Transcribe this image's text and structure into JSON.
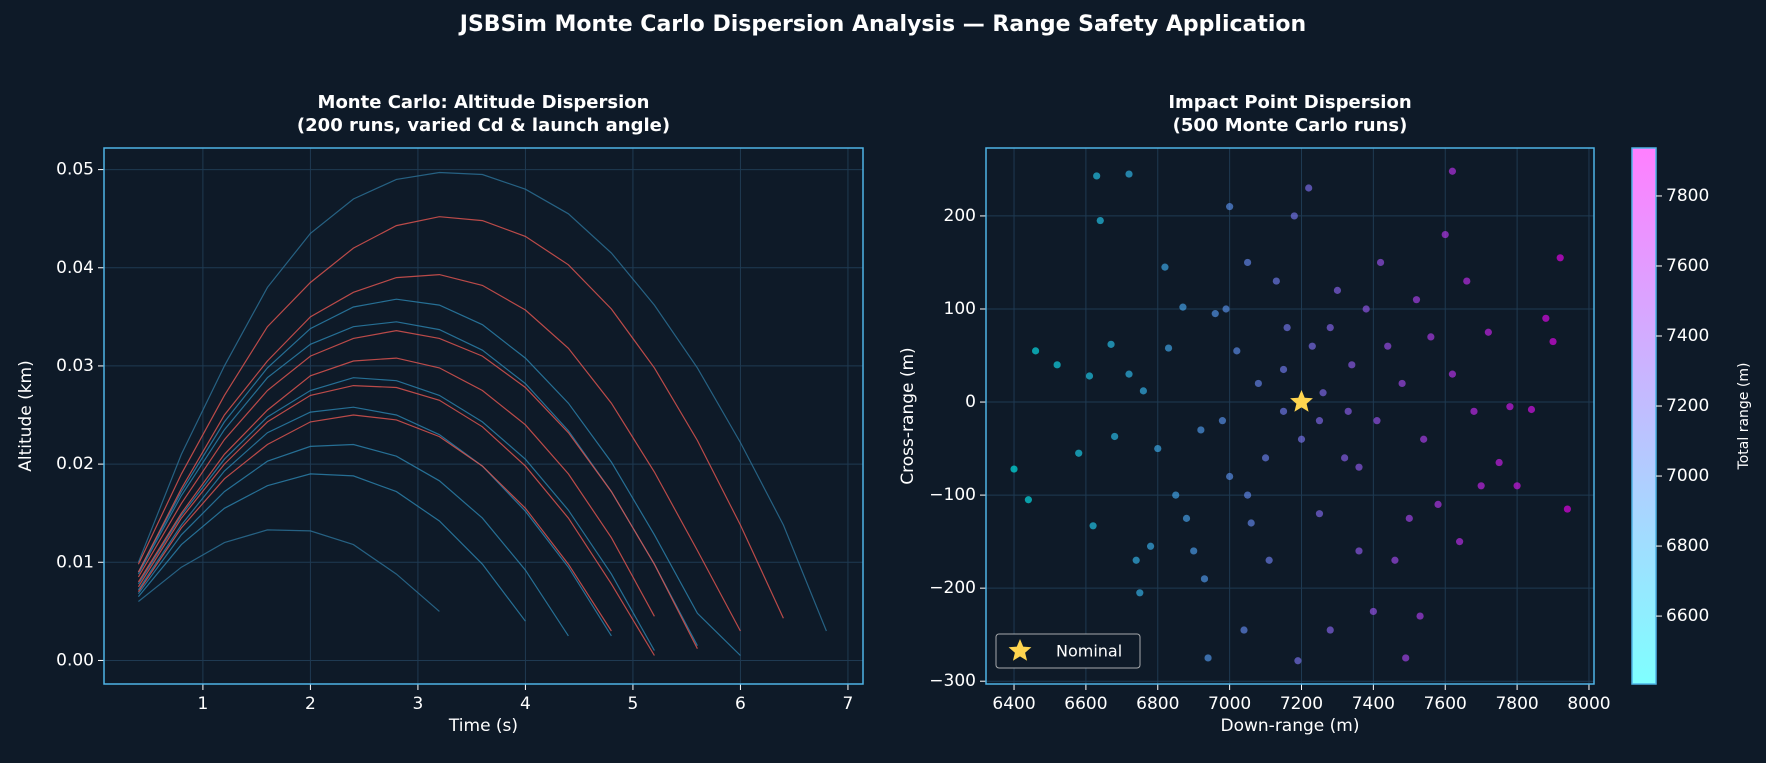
{
  "figure_title": "JSBSim Monte Carlo Dispersion Analysis — Range Safety Application",
  "chart_data": [
    {
      "type": "line",
      "title": [
        "Monte Carlo: Altitude Dispersion",
        "(200 runs, varied Cd & launch angle)"
      ],
      "x_label": "Time (s)",
      "y_label": "Altitude (km)",
      "xlim": [
        0.08,
        7.14
      ],
      "ylim": [
        -0.0024,
        0.0522
      ],
      "xticks": [
        1,
        2,
        3,
        4,
        5,
        6,
        7
      ],
      "yticks": [
        {
          "value": 0,
          "label": "0.00"
        },
        0.01,
        0.02,
        0.03,
        0.04,
        0.05
      ],
      "grid": true,
      "x": [
        0.4,
        0.8,
        1.2,
        1.6,
        2.0,
        2.4,
        2.8,
        3.2,
        3.6,
        4.0,
        4.4,
        4.8,
        5.2,
        5.6,
        6.0,
        6.4,
        6.8
      ],
      "series": [
        {
          "color": "#2a6f93",
          "values": [
            0.01,
            0.021,
            0.03,
            0.038,
            0.0435,
            0.047,
            0.049,
            0.0497,
            0.0495,
            0.048,
            0.0455,
            0.0415,
            0.0362,
            0.0298,
            0.0222,
            0.0138,
            0.003
          ]
        },
        {
          "color": "#2a6f93",
          "values": [
            0.006,
            0.0095,
            0.012,
            0.0133,
            0.0132,
            0.0118,
            0.0088,
            0.005,
            null,
            null,
            null,
            null,
            null,
            null,
            null,
            null,
            null
          ]
        },
        {
          "color": "#2a7fa8",
          "values": [
            0.0088,
            0.0168,
            0.0235,
            0.0288,
            0.0322,
            0.034,
            0.0345,
            0.0337,
            0.0316,
            0.0282,
            0.0234,
            0.0172,
            0.0098,
            0.0015,
            null,
            null,
            null
          ]
        },
        {
          "color": "#2a7fa8",
          "values": [
            0.0068,
            0.0128,
            0.0172,
            0.0203,
            0.0218,
            0.022,
            0.0208,
            0.0183,
            0.0145,
            0.0092,
            0.0025,
            null,
            null,
            null,
            null,
            null,
            null
          ]
        },
        {
          "color": "#2a7fa8",
          "values": [
            0.0065,
            0.0118,
            0.0155,
            0.0178,
            0.019,
            0.0188,
            0.0172,
            0.0142,
            0.0098,
            0.004,
            null,
            null,
            null,
            null,
            null,
            null,
            null
          ]
        },
        {
          "color": "#2a7fa8",
          "values": [
            0.009,
            0.0172,
            0.0243,
            0.0298,
            0.0338,
            0.036,
            0.0368,
            0.0362,
            0.0342,
            0.0308,
            0.0262,
            0.0202,
            0.0128,
            0.0048,
            0.0005,
            null,
            null
          ]
        },
        {
          "color": "#2a7fa8",
          "values": [
            0.0078,
            0.0148,
            0.0205,
            0.0248,
            0.0275,
            0.0288,
            0.0285,
            0.027,
            0.0243,
            0.0205,
            0.0153,
            0.0088,
            0.001,
            null,
            null,
            null,
            null
          ]
        },
        {
          "color": "#2a7fa8",
          "values": [
            0.0072,
            0.0138,
            0.0193,
            0.0232,
            0.0253,
            0.0258,
            0.025,
            0.023,
            0.0198,
            0.0152,
            0.0095,
            0.0025,
            null,
            null,
            null,
            null,
            null
          ]
        },
        {
          "color": "#d9534f",
          "values": [
            0.0098,
            0.019,
            0.027,
            0.034,
            0.0385,
            0.042,
            0.0443,
            0.0452,
            0.0448,
            0.0432,
            0.0403,
            0.0358,
            0.0298,
            0.0224,
            0.0138,
            0.0043,
            null
          ]
        },
        {
          "color": "#d9534f",
          "values": [
            0.009,
            0.0175,
            0.025,
            0.0305,
            0.035,
            0.0375,
            0.039,
            0.0393,
            0.0382,
            0.0357,
            0.0318,
            0.0262,
            0.0192,
            0.0112,
            0.003,
            null,
            null
          ]
        },
        {
          "color": "#d9534f",
          "values": [
            0.0085,
            0.016,
            0.0225,
            0.0275,
            0.031,
            0.0328,
            0.0336,
            0.0328,
            0.031,
            0.0278,
            0.0232,
            0.0172,
            0.0098,
            0.0012,
            null,
            null,
            null
          ]
        },
        {
          "color": "#d9534f",
          "values": [
            0.008,
            0.015,
            0.021,
            0.0255,
            0.029,
            0.0305,
            0.0308,
            0.0298,
            0.0275,
            0.024,
            0.019,
            0.0125,
            0.0045,
            null,
            null,
            null,
            null
          ]
        },
        {
          "color": "#d9534f",
          "values": [
            0.0075,
            0.0145,
            0.02,
            0.0243,
            0.027,
            0.028,
            0.0278,
            0.0265,
            0.0238,
            0.0198,
            0.0145,
            0.0078,
            0.0005,
            null,
            null,
            null,
            null
          ]
        },
        {
          "color": "#d9534f",
          "values": [
            0.007,
            0.0135,
            0.0185,
            0.022,
            0.0243,
            0.025,
            0.0245,
            0.0228,
            0.0198,
            0.0155,
            0.0098,
            0.003,
            null,
            null,
            null,
            null,
            null
          ]
        }
      ]
    },
    {
      "type": "scatter",
      "title": [
        "Impact Point Dispersion",
        "(500 Monte Carlo runs)"
      ],
      "x_label": "Down-range (m)",
      "y_label": "Cross-range (m)",
      "xlim": [
        6322,
        8014
      ],
      "ylim": [
        -303,
        273
      ],
      "xticks": [
        6400,
        6600,
        6800,
        7000,
        7200,
        7400,
        7600,
        7800,
        8000
      ],
      "yticks": [
        {
          "value": -300,
          "label": "−300"
        },
        {
          "value": -200,
          "label": "−200"
        },
        {
          "value": -100,
          "label": "−100"
        },
        0,
        100,
        200
      ],
      "grid": true,
      "x": [
        6400,
        6440,
        6460,
        6520,
        6580,
        6610,
        6620,
        6630,
        6640,
        6670,
        6680,
        6720,
        6720,
        6740,
        6750,
        6760,
        6780,
        6800,
        6820,
        6830,
        6850,
        6870,
        6880,
        6900,
        6920,
        6930,
        6940,
        6960,
        6980,
        7000,
        7000,
        7020,
        7040,
        7050,
        7060,
        7080,
        7100,
        7110,
        7130,
        7150,
        7160,
        7180,
        7190,
        7200,
        7220,
        7230,
        7250,
        7260,
        7280,
        7300,
        7320,
        7340,
        7360,
        7380,
        7400,
        7410,
        7420,
        7440,
        7460,
        7480,
        7490,
        7500,
        7520,
        7540,
        7560,
        7580,
        7600,
        7620,
        7640,
        7660,
        7680,
        7700,
        7720,
        7750,
        7780,
        7800,
        7840,
        7880,
        7900,
        7920,
        7940,
        7620,
        7530,
        7360,
        7150,
        7250,
        7050,
        6990,
        7330,
        7280
      ],
      "y": [
        -72,
        -105,
        55,
        40,
        -55,
        28,
        -133,
        243,
        195,
        62,
        -37,
        245,
        30,
        -170,
        -205,
        12,
        -155,
        -50,
        145,
        58,
        -100,
        102,
        -125,
        -160,
        -30,
        -190,
        -275,
        95,
        -20,
        210,
        -80,
        55,
        -245,
        150,
        -130,
        20,
        -60,
        -170,
        130,
        -10,
        80,
        200,
        -278,
        -40,
        230,
        60,
        -120,
        10,
        -245,
        120,
        -60,
        40,
        -160,
        100,
        -225,
        -20,
        150,
        60,
        -170,
        20,
        -275,
        -125,
        110,
        -40,
        70,
        -110,
        180,
        30,
        -150,
        130,
        -10,
        -90,
        75,
        -65,
        -5,
        -90,
        -8,
        90,
        65,
        155,
        -115,
        248,
        -230,
        -70,
        35,
        -20,
        -100,
        100,
        -10,
        80
      ],
      "c": [
        6400,
        6441,
        6460,
        6520,
        6580,
        6610,
        6621,
        6635,
        6643,
        6670,
        6680,
        6724,
        6720,
        6742,
        6753,
        6760,
        6782,
        6800,
        6822,
        6830,
        6851,
        6871,
        6881,
        6902,
        6920,
        6933,
        6945,
        6961,
        6980,
        7003,
        7000,
        7020,
        7044,
        7052,
        7061,
        7080,
        7100,
        7112,
        7131,
        7150,
        7160,
        7183,
        7195,
        7200,
        7224,
        7230,
        7251,
        7260,
        7284,
        7301,
        7320,
        7340,
        7362,
        7381,
        7403,
        7410,
        7422,
        7440,
        7462,
        7480,
        7495,
        7501,
        7521,
        7540,
        7560,
        7581,
        7602,
        7620,
        7641,
        7661,
        7680,
        7701,
        7720,
        7750,
        7780,
        7801,
        7840,
        7881,
        7900,
        7922,
        7941,
        7624,
        7534,
        7360,
        7150,
        7250,
        7051,
        6991,
        7330,
        7280
      ],
      "colormap": [
        "#00ffff",
        "#ff00ff"
      ],
      "colorbar": {
        "label": "Total range (m)",
        "lim": [
          6406,
          7937
        ],
        "ticks": [
          6600,
          6800,
          7000,
          7200,
          7400,
          7600,
          7800
        ]
      },
      "nominal": {
        "label": "Nominal",
        "x": 7200,
        "y": 0,
        "color": "#ffd54f"
      },
      "legend": "lower left"
    }
  ]
}
